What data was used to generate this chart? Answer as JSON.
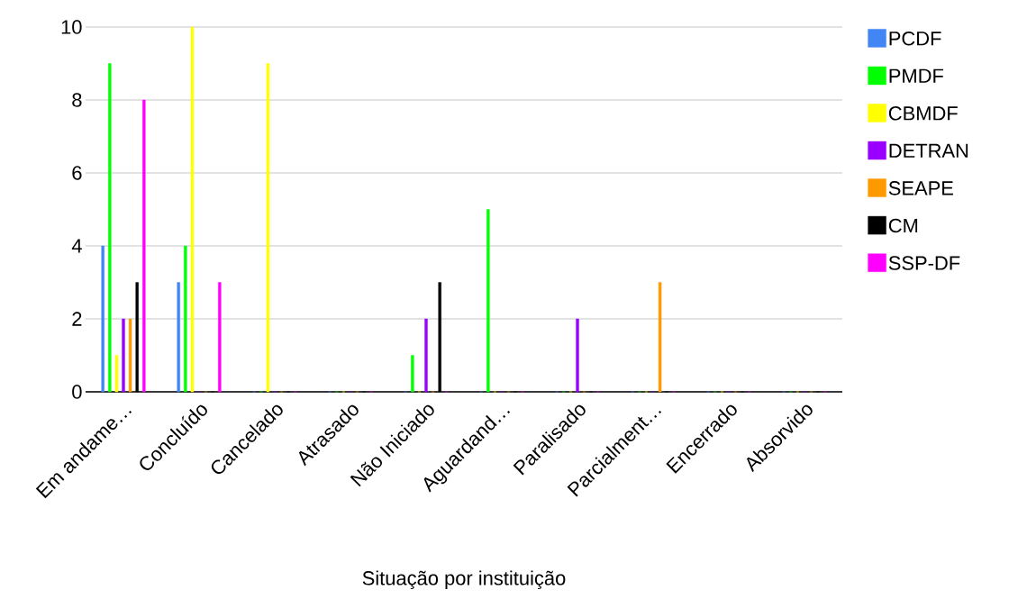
{
  "chart_data": {
    "type": "bar",
    "xlabel": "Situação por instituição",
    "categories": [
      "Em andame…",
      "Concluído",
      "Cancelado",
      "Atrasado",
      "Não Iniciado",
      "Aguardand…",
      "Paralisado",
      "Parcialment…",
      "Encerrado",
      "Absorvido"
    ],
    "series": [
      {
        "name": "PCDF",
        "color": "#4285f4",
        "values": [
          4,
          3,
          0,
          0,
          0,
          0,
          0,
          0,
          0,
          0
        ]
      },
      {
        "name": "PMDF",
        "color": "#00ff00",
        "values": [
          9,
          4,
          0,
          0,
          1,
          5,
          0,
          0,
          0,
          0
        ]
      },
      {
        "name": "CBMDF",
        "color": "#ffff00",
        "values": [
          1,
          10,
          9,
          0,
          0,
          0,
          0,
          0,
          0,
          0
        ]
      },
      {
        "name": "DETRAN",
        "color": "#9900ff",
        "values": [
          2,
          0,
          0,
          0,
          2,
          0,
          2,
          0,
          0,
          0
        ]
      },
      {
        "name": "SEAPE",
        "color": "#ff9900",
        "values": [
          2,
          0,
          0,
          0,
          0,
          0,
          0,
          3,
          0,
          0
        ]
      },
      {
        "name": "CM",
        "color": "#000000",
        "values": [
          3,
          0,
          0,
          0,
          3,
          0,
          0,
          0,
          0,
          0
        ]
      },
      {
        "name": "SSP-DF",
        "color": "#ff00ff",
        "values": [
          8,
          3,
          0,
          0,
          0,
          0,
          0,
          0,
          0,
          0
        ]
      }
    ],
    "ylim": [
      0,
      10
    ],
    "yticks": [
      0,
      2,
      4,
      6,
      8,
      10
    ],
    "grid": "y",
    "legend": "right"
  }
}
